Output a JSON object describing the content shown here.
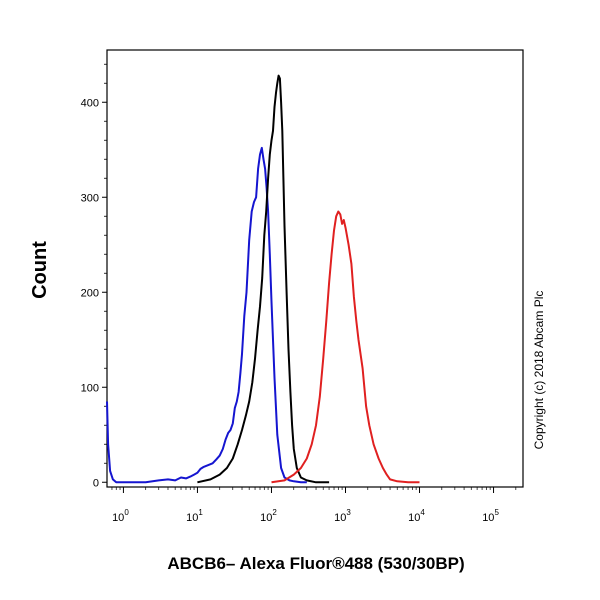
{
  "chart_data": {
    "type": "line",
    "title": "",
    "xlabel": "ABCB6– Alexa Fluor®488 (530/30BP)",
    "ylabel": "Count",
    "xscale": "log",
    "xlim": [
      0.6,
      250000
    ],
    "ylim": [
      -5,
      455
    ],
    "x_ticks": [
      {
        "value": 1,
        "base": "10",
        "exp": "0"
      },
      {
        "value": 10,
        "base": "10",
        "exp": "1"
      },
      {
        "value": 100,
        "base": "10",
        "exp": "2"
      },
      {
        "value": 1000,
        "base": "10",
        "exp": "3"
      },
      {
        "value": 10000,
        "base": "10",
        "exp": "4"
      },
      {
        "value": 100000,
        "base": "10",
        "exp": "5"
      }
    ],
    "y_ticks": [
      0,
      100,
      200,
      300,
      400
    ],
    "annotation": "Copyright (c) 2018 Abcam Plc",
    "grid": false,
    "series": [
      {
        "color": "#1515d0",
        "x": [
          0.6,
          0.62,
          0.66,
          0.72,
          0.8,
          1.2,
          2,
          3,
          4,
          5,
          6,
          7,
          8,
          9,
          10,
          11,
          12,
          14,
          16,
          18,
          20,
          22,
          24,
          26,
          28,
          30,
          32,
          34,
          36,
          38,
          40,
          43,
          46,
          50,
          54,
          58,
          62,
          66,
          70,
          74,
          78,
          82,
          86,
          90,
          95,
          100,
          110,
          120,
          135,
          150,
          175,
          200,
          250,
          300
        ],
        "y": [
          85,
          40,
          12,
          3,
          0,
          0,
          0,
          2,
          3,
          2,
          5,
          4,
          6,
          8,
          10,
          14,
          16,
          18,
          20,
          24,
          28,
          35,
          45,
          52,
          55,
          62,
          78,
          85,
          95,
          115,
          135,
          175,
          200,
          255,
          285,
          295,
          300,
          330,
          345,
          352,
          340,
          330,
          310,
          285,
          240,
          190,
          110,
          50,
          15,
          5,
          2,
          1,
          0,
          0
        ]
      },
      {
        "color": "#000000",
        "x": [
          10,
          15,
          20,
          25,
          30,
          35,
          40,
          45,
          50,
          55,
          60,
          65,
          70,
          75,
          80,
          85,
          90,
          95,
          100,
          105,
          110,
          115,
          120,
          125,
          130,
          135,
          140,
          145,
          150,
          160,
          170,
          180,
          190,
          200,
          220,
          250,
          300,
          400,
          600
        ],
        "y": [
          0,
          3,
          8,
          15,
          25,
          40,
          55,
          70,
          85,
          105,
          130,
          160,
          185,
          215,
          260,
          285,
          320,
          345,
          360,
          370,
          395,
          410,
          420,
          428,
          425,
          400,
          370,
          320,
          270,
          200,
          140,
          95,
          60,
          35,
          15,
          5,
          2,
          0,
          0
        ]
      },
      {
        "color": "#e02020",
        "x": [
          100,
          150,
          200,
          250,
          300,
          350,
          400,
          450,
          500,
          550,
          600,
          650,
          700,
          750,
          800,
          850,
          900,
          950,
          1000,
          1100,
          1200,
          1300,
          1400,
          1500,
          1700,
          1900,
          2100,
          2400,
          2800,
          3200,
          3600,
          4000,
          5000,
          7000,
          10000
        ],
        "y": [
          0,
          2,
          8,
          15,
          25,
          40,
          60,
          90,
          130,
          170,
          210,
          240,
          265,
          280,
          285,
          282,
          272,
          276,
          268,
          250,
          230,
          195,
          170,
          150,
          120,
          80,
          60,
          40,
          25,
          15,
          8,
          3,
          1,
          0,
          0
        ]
      }
    ]
  }
}
